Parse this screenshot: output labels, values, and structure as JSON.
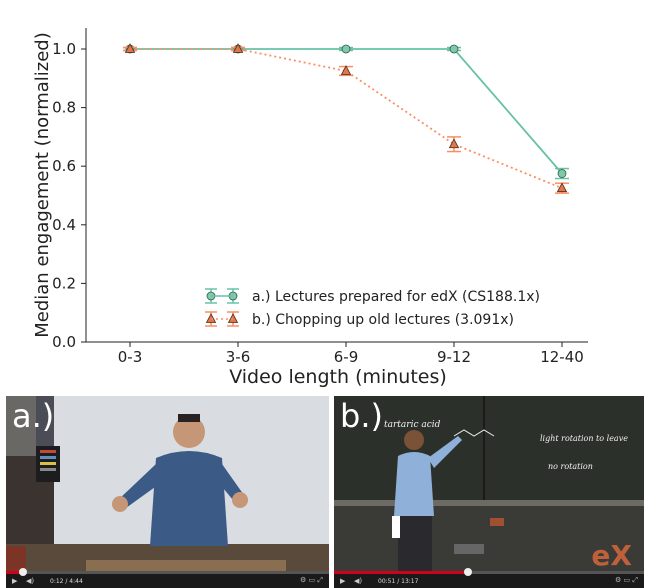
{
  "chart_data": {
    "type": "line",
    "xlabel": "Video length (minutes)",
    "ylabel": "Median engagement (normalized)",
    "categories": [
      "0-3",
      "3-6",
      "6-9",
      "9-12",
      "12-40"
    ],
    "ylim": [
      0.0,
      1.05
    ],
    "yticks": [
      "0.0",
      "0.2",
      "0.4",
      "0.6",
      "0.8",
      "1.0"
    ],
    "legend_position": "lower-right",
    "series": [
      {
        "name": "a.) Lectures prepared for edX (CS188.1x)",
        "values": [
          1.0,
          1.0,
          1.0,
          1.0,
          0.575
        ],
        "errors": [
          0.005,
          0.005,
          0.005,
          0.005,
          0.017
        ],
        "color": "#66c2a5",
        "line": "solid",
        "marker": "circle"
      },
      {
        "name": "b.) Chopping up old lectures (3.091x)",
        "values": [
          1.0,
          1.0,
          0.925,
          0.675,
          0.525
        ],
        "errors": [
          0.005,
          0.005,
          0.015,
          0.025,
          0.017
        ],
        "color": "#fc8d62",
        "line": "dotted",
        "marker": "triangle"
      }
    ]
  },
  "panels": {
    "a": {
      "label": "a.)",
      "time": "0:12 / 4:44"
    },
    "b": {
      "label": "b.)",
      "time": "00:51 / 13:17",
      "board_text_1": "tartaric acid",
      "board_text_2": "light rotation to leave",
      "board_text_3": "no rotation",
      "logo": "eX"
    }
  }
}
